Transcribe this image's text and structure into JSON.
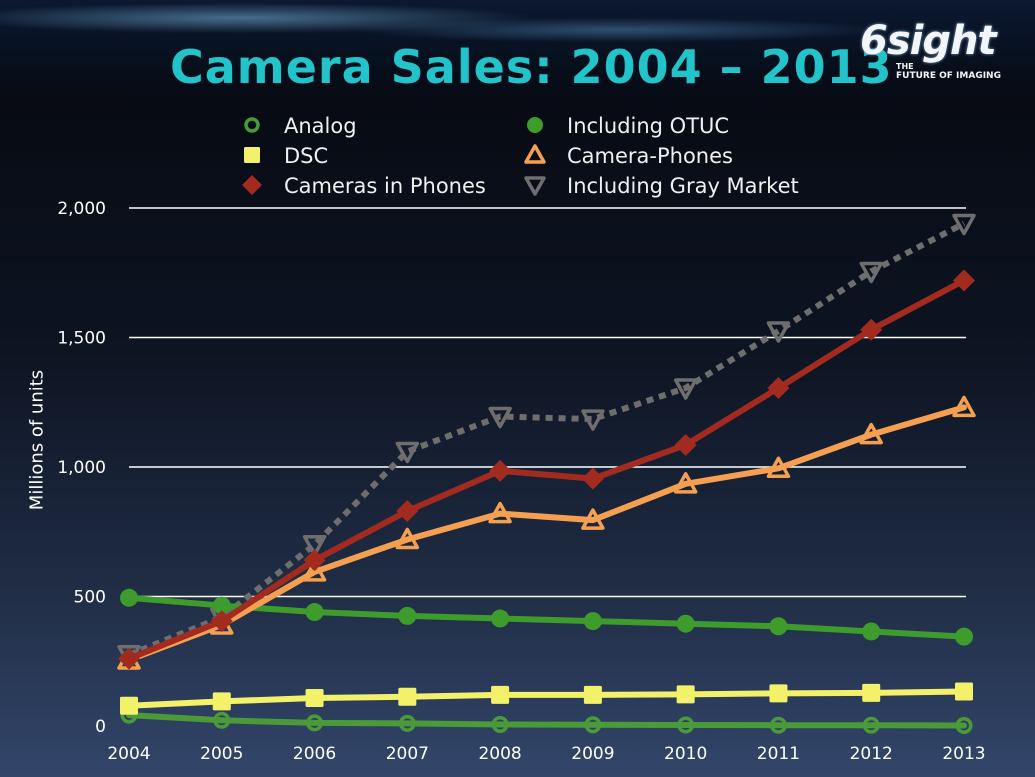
{
  "slide": {
    "title": "Camera Sales: 2004 – 2013",
    "logo": {
      "main": "6sight",
      "line1": "THE",
      "line2": "FUTURE OF IMAGING"
    }
  },
  "chart_data": {
    "type": "line",
    "title": "Camera Sales: 2004 – 2013",
    "xlabel": "",
    "ylabel": "Millions of units",
    "x": [
      "2004",
      "2005",
      "2006",
      "2007",
      "2008",
      "2009",
      "2010",
      "2011",
      "2012",
      "2013"
    ],
    "ylim": [
      0,
      2000
    ],
    "yticks": [
      0,
      500,
      1000,
      1500,
      2000
    ],
    "ytick_labels": [
      "0",
      "500",
      "1,000",
      "1,500",
      "2,000"
    ],
    "grid": true,
    "legend_position": "top",
    "series": [
      {
        "name": "Analog",
        "color": "#4a9a3a",
        "marker": "circle-open",
        "dashed": false,
        "values": [
          42,
          22,
          12,
          10,
          6,
          5,
          4,
          3,
          3,
          2
        ]
      },
      {
        "name": "DSC",
        "color": "#f3f06a",
        "marker": "square",
        "dashed": false,
        "values": [
          78,
          95,
          108,
          113,
          120,
          120,
          122,
          126,
          128,
          133
        ]
      },
      {
        "name": "Cameras in Phones",
        "color": "#a32a1f",
        "marker": "diamond",
        "dashed": false,
        "values": [
          260,
          405,
          640,
          830,
          985,
          955,
          1085,
          1305,
          1530,
          1720
        ]
      },
      {
        "name": "Including OTUC",
        "color": "#3e9c2c",
        "marker": "circle",
        "dashed": false,
        "values": [
          495,
          465,
          440,
          425,
          415,
          405,
          395,
          385,
          365,
          345
        ]
      },
      {
        "name": "Camera-Phones",
        "color": "#f5a050",
        "marker": "triangle-up",
        "dashed": false,
        "values": [
          255,
          390,
          595,
          720,
          820,
          795,
          935,
          995,
          1125,
          1230
        ]
      },
      {
        "name": "Including Gray Market",
        "color": "#6e6e6e",
        "marker": "triangle-down",
        "dashed": true,
        "values": [
          275,
          420,
          700,
          1060,
          1195,
          1185,
          1305,
          1525,
          1755,
          1940
        ]
      }
    ]
  }
}
